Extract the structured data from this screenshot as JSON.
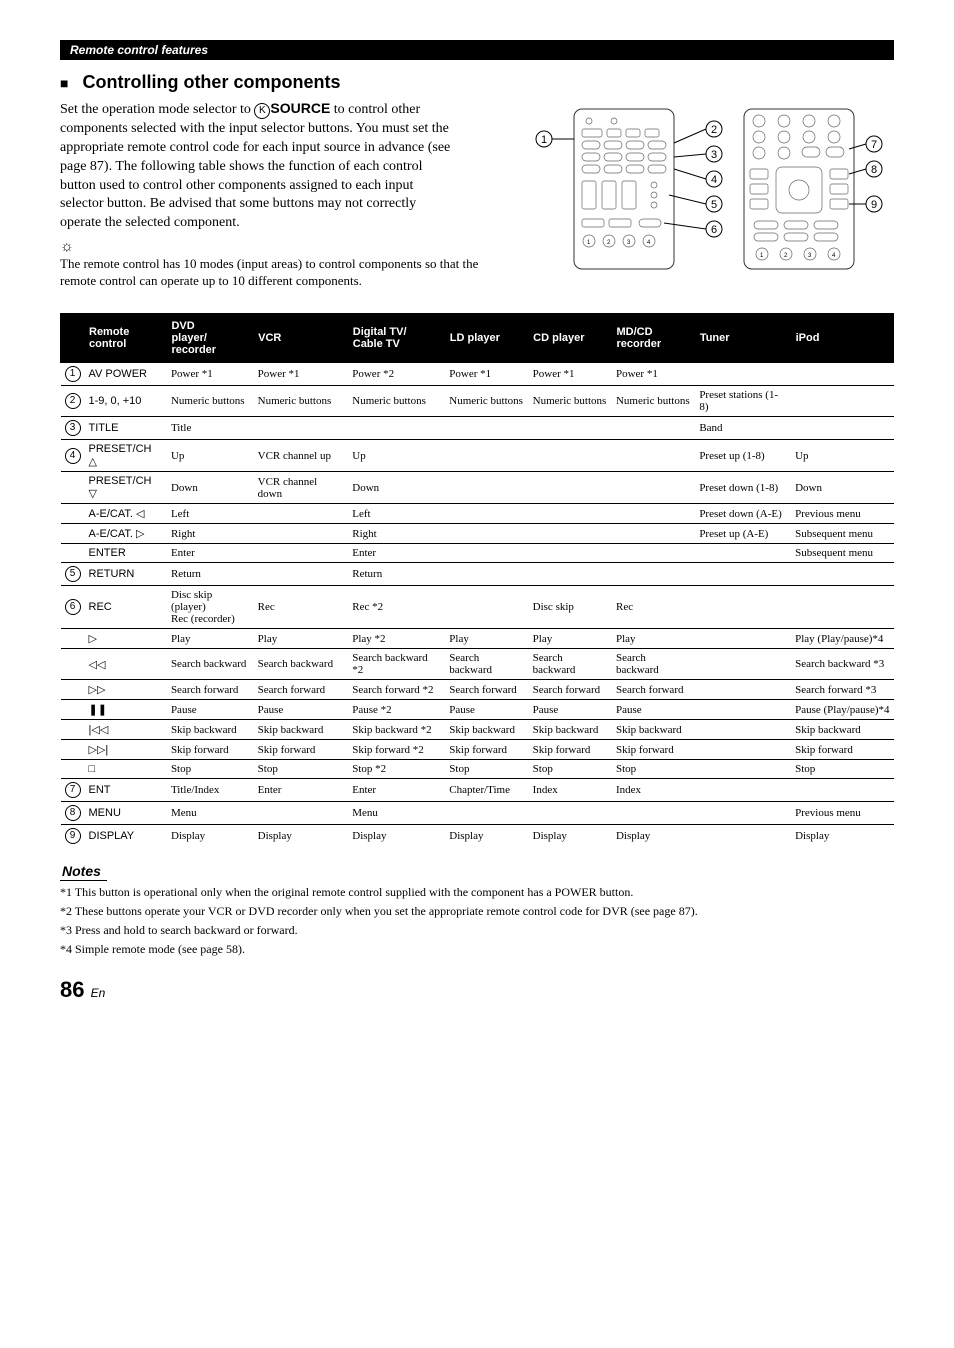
{
  "header_bar": "Remote control features",
  "section_title": "Controlling other components",
  "intro_p1a": "Set the operation mode selector to ",
  "intro_source_letter": "K",
  "intro_source_word": "SOURCE",
  "intro_p1b": " to control other components selected with the input selector buttons. You must set the appropriate remote control code for each input source in advance (see page 87). The following table shows the function of each control button used to control other components assigned to each input selector button. Be advised that some buttons may not correctly operate the selected component.",
  "hint_icon": "☼",
  "hint_text": "The remote control has 10 modes (input areas) to control components so that the remote control can operate up to 10 different components.",
  "columns": [
    "",
    "Remote control",
    "DVD player/ recorder",
    "VCR",
    "Digital TV/ Cable TV",
    "LD player",
    "CD player",
    "MD/CD recorder",
    "Tuner",
    "iPod"
  ],
  "rows": [
    {
      "num": "1",
      "label": "AV POWER",
      "c": [
        "Power *1",
        "Power *1",
        "Power *2",
        "Power *1",
        "Power *1",
        "Power *1",
        "",
        ""
      ]
    },
    {
      "num": "2",
      "label": "1-9, 0, +10",
      "c": [
        "Numeric buttons",
        "Numeric buttons",
        "Numeric buttons",
        "Numeric buttons",
        "Numeric buttons",
        "Numeric buttons",
        "Preset stations (1-8)",
        ""
      ]
    },
    {
      "num": "3",
      "label": "TITLE",
      "c": [
        "Title",
        "",
        "",
        "",
        "",
        "",
        "Band",
        ""
      ]
    },
    {
      "num": "4",
      "label": "PRESET/CH △",
      "c": [
        "Up",
        "VCR channel up",
        "Up",
        "",
        "",
        "",
        "Preset up (1-8)",
        "Up"
      ]
    },
    {
      "num": "",
      "label": "PRESET/CH ▽",
      "c": [
        "Down",
        "VCR channel down",
        "Down",
        "",
        "",
        "",
        "Preset down (1-8)",
        "Down"
      ]
    },
    {
      "num": "",
      "label": "A-E/CAT. ◁",
      "c": [
        "Left",
        "",
        "Left",
        "",
        "",
        "",
        "Preset down (A-E)",
        "Previous menu"
      ]
    },
    {
      "num": "",
      "label": "A-E/CAT. ▷",
      "c": [
        "Right",
        "",
        "Right",
        "",
        "",
        "",
        "Preset up (A-E)",
        "Subsequent menu"
      ]
    },
    {
      "num": "",
      "label": "ENTER",
      "c": [
        "Enter",
        "",
        "Enter",
        "",
        "",
        "",
        "",
        "Subsequent menu"
      ]
    },
    {
      "num": "5",
      "label": "RETURN",
      "c": [
        "Return",
        "",
        "Return",
        "",
        "",
        "",
        "",
        ""
      ]
    },
    {
      "num": "6",
      "label": "REC",
      "c": [
        "Disc skip (player)\nRec (recorder)",
        "Rec",
        "Rec *2",
        "",
        "Disc skip",
        "Rec",
        "",
        ""
      ]
    },
    {
      "num": "",
      "label": "▷",
      "c": [
        "Play",
        "Play",
        "Play *2",
        "Play",
        "Play",
        "Play",
        "",
        "Play (Play/pause)*4"
      ]
    },
    {
      "num": "",
      "label": "◁◁",
      "c": [
        "Search backward",
        "Search backward",
        "Search backward *2",
        "Search backward",
        "Search backward",
        "Search backward",
        "",
        "Search backward *3"
      ]
    },
    {
      "num": "",
      "label": "▷▷",
      "c": [
        "Search forward",
        "Search forward",
        "Search forward *2",
        "Search forward",
        "Search forward",
        "Search forward",
        "",
        "Search forward *3"
      ]
    },
    {
      "num": "",
      "label": "❚❚",
      "c": [
        "Pause",
        "Pause",
        "Pause *2",
        "Pause",
        "Pause",
        "Pause",
        "",
        "Pause (Play/pause)*4"
      ]
    },
    {
      "num": "",
      "label": "|◁◁",
      "c": [
        "Skip backward",
        "Skip backward",
        "Skip backward *2",
        "Skip backward",
        "Skip backward",
        "Skip backward",
        "",
        "Skip backward"
      ]
    },
    {
      "num": "",
      "label": "▷▷|",
      "c": [
        "Skip forward",
        "Skip forward",
        "Skip forward *2",
        "Skip forward",
        "Skip forward",
        "Skip forward",
        "",
        "Skip forward"
      ]
    },
    {
      "num": "",
      "label": "□",
      "c": [
        "Stop",
        "Stop",
        "Stop *2",
        "Stop",
        "Stop",
        "Stop",
        "",
        "Stop"
      ]
    },
    {
      "num": "7",
      "label": "ENT",
      "c": [
        "Title/Index",
        "Enter",
        "Enter",
        "Chapter/Time",
        "Index",
        "Index",
        "",
        ""
      ]
    },
    {
      "num": "8",
      "label": "MENU",
      "c": [
        "Menu",
        "",
        "Menu",
        "",
        "",
        "",
        "",
        "Previous menu"
      ]
    },
    {
      "num": "9",
      "label": "DISPLAY",
      "c": [
        "Display",
        "Display",
        "Display",
        "Display",
        "Display",
        "Display",
        "",
        "Display"
      ]
    }
  ],
  "notes_label": "Notes",
  "notes": [
    "*1 This button is operational only when the original remote control supplied with the component has a POWER button.",
    "*2 These buttons operate your VCR or DVD recorder only when you set the appropriate remote control code for DVR (see page 87).",
    "*3 Press and hold to search backward or forward.",
    "*4 Simple remote mode (see page 58)."
  ],
  "page_number": "86",
  "page_lang": "En",
  "diagram": {
    "left_callouts": [
      "1"
    ],
    "mid_callouts": [
      "2",
      "3",
      "4",
      "5",
      "6"
    ],
    "right_callouts": [
      "7",
      "8",
      "9"
    ]
  }
}
